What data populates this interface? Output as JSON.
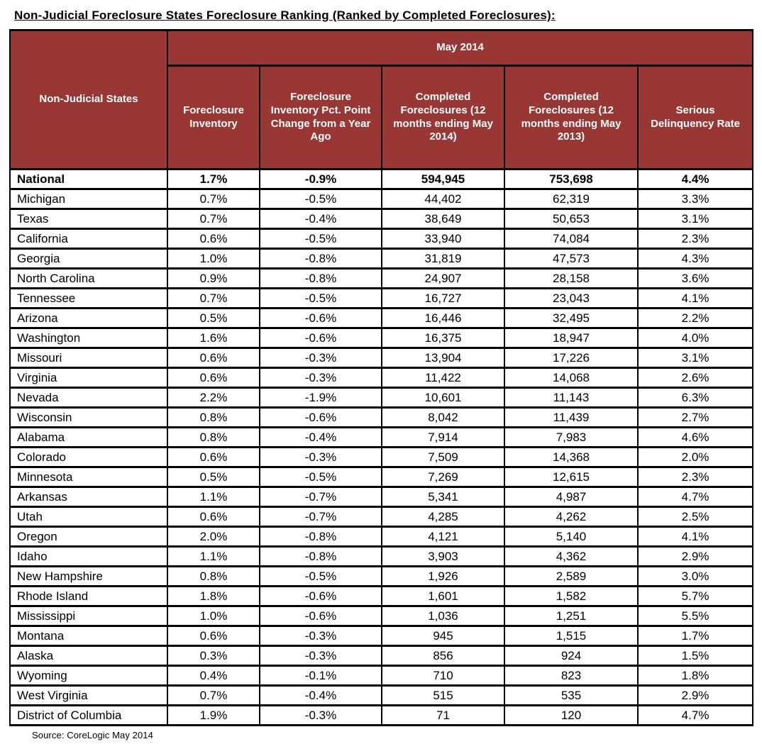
{
  "title": "Non-Judicial Foreclosure States Foreclosure Ranking (Ranked by Completed Foreclosures):",
  "source": "Source: CoreLogic May 2014",
  "colors": {
    "header_bg": "#983734",
    "header_text": "#ffffff",
    "border": "#000000"
  },
  "table": {
    "group_header": "May 2014",
    "row_header_label": "Non-Judicial States",
    "columns": [
      "Foreclosure Inventory",
      "Foreclosure Inventory Pct. Point Change from a Year Ago",
      "Completed Foreclosures (12 months ending May 2014)",
      "Completed Foreclosures (12 months ending May 2013)",
      "Serious Delinquency Rate"
    ],
    "national": {
      "label": "National",
      "values": [
        "1.7%",
        "-0.9%",
        "594,945",
        "753,698",
        "4.4%"
      ]
    },
    "rows": [
      {
        "state": "Michigan",
        "values": [
          "0.7%",
          "-0.5%",
          "44,402",
          "62,319",
          "3.3%"
        ]
      },
      {
        "state": "Texas",
        "values": [
          "0.7%",
          "-0.4%",
          "38,649",
          "50,653",
          "3.1%"
        ]
      },
      {
        "state": "California",
        "values": [
          "0.6%",
          "-0.5%",
          "33,940",
          "74,084",
          "2.3%"
        ]
      },
      {
        "state": "Georgia",
        "values": [
          "1.0%",
          "-0.8%",
          "31,819",
          "47,573",
          "4.3%"
        ]
      },
      {
        "state": "North Carolina",
        "values": [
          "0.9%",
          "-0.8%",
          "24,907",
          "28,158",
          "3.6%"
        ]
      },
      {
        "state": "Tennessee",
        "values": [
          "0.7%",
          "-0.5%",
          "16,727",
          "23,043",
          "4.1%"
        ]
      },
      {
        "state": "Arizona",
        "values": [
          "0.5%",
          "-0.6%",
          "16,446",
          "32,495",
          "2.2%"
        ]
      },
      {
        "state": "Washington",
        "values": [
          "1.6%",
          "-0.6%",
          "16,375",
          "18,947",
          "4.0%"
        ]
      },
      {
        "state": "Missouri",
        "values": [
          "0.6%",
          "-0.3%",
          "13,904",
          "17,226",
          "3.1%"
        ]
      },
      {
        "state": "Virginia",
        "values": [
          "0.6%",
          "-0.3%",
          "11,422",
          "14,068",
          "2.6%"
        ]
      },
      {
        "state": "Nevada",
        "values": [
          "2.2%",
          "-1.9%",
          "10,601",
          "11,143",
          "6.3%"
        ]
      },
      {
        "state": "Wisconsin",
        "values": [
          "0.8%",
          "-0.6%",
          "8,042",
          "11,439",
          "2.7%"
        ]
      },
      {
        "state": "Alabama",
        "values": [
          "0.8%",
          "-0.4%",
          "7,914",
          "7,983",
          "4.6%"
        ]
      },
      {
        "state": "Colorado",
        "values": [
          "0.6%",
          "-0.3%",
          "7,509",
          "14,368",
          "2.0%"
        ]
      },
      {
        "state": "Minnesota",
        "values": [
          "0.5%",
          "-0.5%",
          "7,269",
          "12,615",
          "2.3%"
        ]
      },
      {
        "state": "Arkansas",
        "values": [
          "1.1%",
          "-0.7%",
          "5,341",
          "4,987",
          "4.7%"
        ]
      },
      {
        "state": "Utah",
        "values": [
          "0.6%",
          "-0.7%",
          "4,285",
          "4,262",
          "2.5%"
        ]
      },
      {
        "state": "Oregon",
        "values": [
          "2.0%",
          "-0.8%",
          "4,121",
          "5,140",
          "4.1%"
        ]
      },
      {
        "state": "Idaho",
        "values": [
          "1.1%",
          "-0.8%",
          "3,903",
          "4,362",
          "2.9%"
        ]
      },
      {
        "state": "New Hampshire",
        "values": [
          "0.8%",
          "-0.5%",
          "1,926",
          "2,589",
          "3.0%"
        ]
      },
      {
        "state": "Rhode Island",
        "values": [
          "1.8%",
          "-0.6%",
          "1,601",
          "1,582",
          "5.7%"
        ]
      },
      {
        "state": "Mississippi",
        "values": [
          "1.0%",
          "-0.6%",
          "1,036",
          "1,251",
          "5.5%"
        ]
      },
      {
        "state": "Montana",
        "values": [
          "0.6%",
          "-0.3%",
          "945",
          "1,515",
          "1.7%"
        ]
      },
      {
        "state": "Alaska",
        "values": [
          "0.3%",
          "-0.3%",
          "856",
          "924",
          "1.5%"
        ]
      },
      {
        "state": "Wyoming",
        "values": [
          "0.4%",
          "-0.1%",
          "710",
          "823",
          "1.8%"
        ]
      },
      {
        "state": "West Virginia",
        "values": [
          "0.7%",
          "-0.4%",
          "515",
          "535",
          "2.9%"
        ]
      },
      {
        "state": "District of Columbia",
        "values": [
          "1.9%",
          "-0.3%",
          "71",
          "120",
          "4.7%"
        ]
      }
    ]
  }
}
